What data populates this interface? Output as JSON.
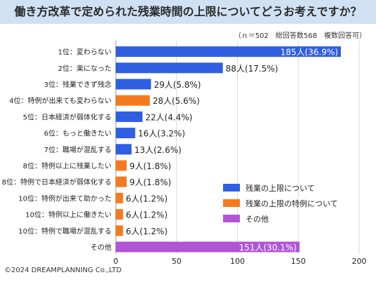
{
  "header": {
    "title": "働き方改革で定められた残業時間の上限についてどうお考えですか？",
    "note": "（ｎ＝502　総回答数568　複数回答可）"
  },
  "footer": {
    "copyright": "©2024 DREAMPLANNING Co.,LTD"
  },
  "chart_data": {
    "type": "bar",
    "orientation": "horizontal",
    "xlim": [
      0,
      200
    ],
    "x_ticks": [
      "0",
      "50",
      "100",
      "150",
      "200"
    ],
    "grid": true,
    "legend_position": "bottom-right",
    "categories": [
      "1位：変わらない",
      "2位：楽になった",
      "3位：残業できず残念",
      "4位：特例が出来ても変わらない",
      "5位：日本経済が弱体化する",
      "6位：もっと働きたい",
      "7位：職場が混乱する",
      "8位：特例以上に残業したい",
      "8位：特例で日本経済が弱体化する",
      "10位：特例が出来て助かった",
      "10位：特例以上に働きたい",
      "10位：特例で職場が混乱する",
      "その他"
    ],
    "values": [
      185,
      88,
      29,
      28,
      22,
      16,
      13,
      9,
      9,
      6,
      6,
      6,
      151
    ],
    "value_labels": [
      "185人(36.9%)",
      "88人(17.5%)",
      "29人(5.8%)",
      "28人(5.6%)",
      "22人(4.4%)",
      "16人(3.2%)",
      "13人(2.6%)",
      "9人(1.8%)",
      "9人(1.8%)",
      "6人(1.2%)",
      "6人(1.2%)",
      "6人(1.2%)",
      "151人(30.1%)"
    ],
    "label_inside": [
      true,
      false,
      false,
      false,
      false,
      false,
      false,
      false,
      false,
      false,
      false,
      false,
      true
    ],
    "groups": [
      "limit",
      "limit",
      "limit",
      "special",
      "limit",
      "limit",
      "limit",
      "special",
      "special",
      "special",
      "special",
      "special",
      "other"
    ],
    "legend": [
      {
        "key": "limit",
        "label": "残業の上限について",
        "color": "#2f5fe0"
      },
      {
        "key": "special",
        "label": "残業の上限の特例について",
        "color": "#f47a1f"
      },
      {
        "key": "other",
        "label": "その他",
        "color": "#b154d6"
      }
    ]
  }
}
